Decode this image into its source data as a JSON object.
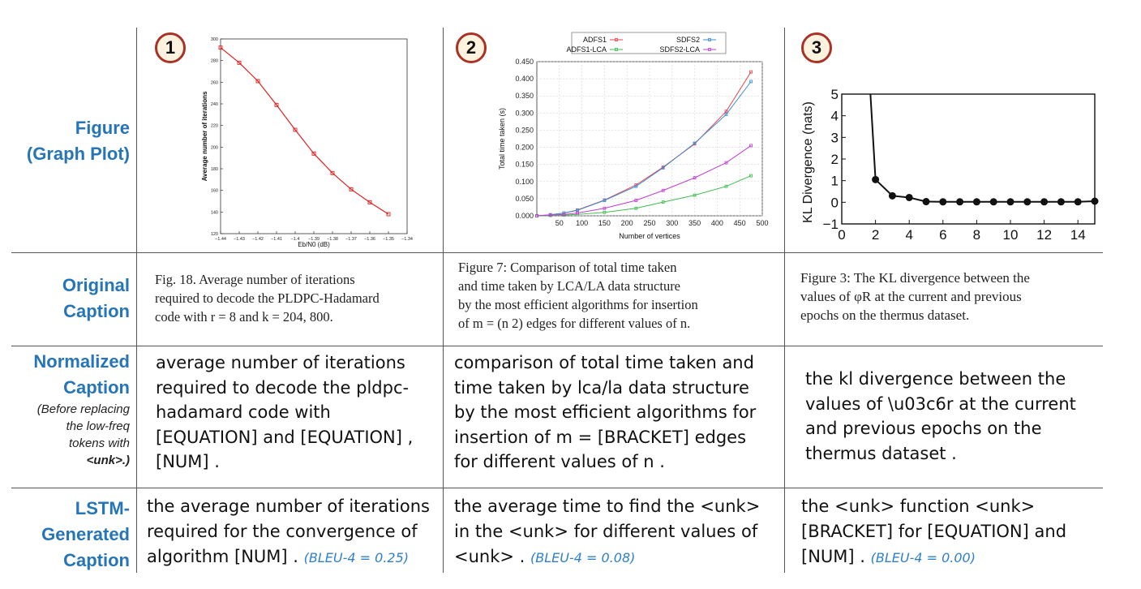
{
  "row_headers": {
    "figure": [
      "Figure",
      "(Graph Plot)"
    ],
    "original": [
      "Original",
      "Caption"
    ],
    "normalized": [
      "Normalized",
      "Caption"
    ],
    "normalized_note": [
      "(Before replacing",
      "the low-freq",
      "tokens with",
      "<unk>.)"
    ],
    "lstm": [
      "LSTM-",
      "Generated",
      "Caption"
    ]
  },
  "badges": [
    "1",
    "2",
    "3"
  ],
  "original_captions": [
    [
      "Fig. 18.  Average number of iterations",
      "required to decode the PLDPC-Hadamard",
      "code with r = 8 and k = 204, 800."
    ],
    [
      "Figure 7: Comparison of total time taken",
      "and time taken by LCA/LA data structure",
      "by the most efficient algorithms for insertion",
      "of m = (n 2) edges for different values of n."
    ],
    [
      "Figure 3:  The KL divergence between the",
      "values of φR at the current and previous",
      "epochs on the thermus dataset."
    ]
  ],
  "normalized_captions": [
    [
      "average number of iterations",
      "required to decode the pldpc-",
      "hadamard code with",
      "[EQUATION] and [EQUATION] ,",
      "[NUM] ."
    ],
    [
      "comparison of total time taken and",
      "time taken by lca/la data structure",
      "by the most efficient algorithms for",
      "insertion of m = [BRACKET] edges",
      "for different values of n ."
    ],
    [
      "the kl divergence between the",
      "values of \\u03c6r at the current",
      "and previous epochs on the",
      "thermus dataset ."
    ]
  ],
  "generated_captions": [
    {
      "lines": [
        "the average number of iterations",
        "required for the convergence of",
        "algorithm [NUM] ."
      ],
      "bleu": "(BLEU-4 = 0.25)"
    },
    {
      "lines": [
        "the average time to find the <unk>",
        "in the <unk> for different values of",
        "<unk> ."
      ],
      "bleu": "(BLEU-4 = 0.08)"
    },
    {
      "lines": [
        "the <unk> function <unk>",
        "[BRACKET] for [EQUATION] and",
        "[NUM] ."
      ],
      "bleu": "(BLEU-4 = 0.00)"
    }
  ],
  "chart_data": [
    {
      "type": "line",
      "xlabel": "Eb/N0 (dB)",
      "ylabel": "Average number of iterations",
      "x_ticks": [
        "-1.44",
        "-1.43",
        "-1.42",
        "-1.41",
        "-1.4",
        "-1.39",
        "-1.38",
        "-1.37",
        "-1.36",
        "-1.35",
        "-1.34"
      ],
      "y_ticks": [
        "120",
        "140",
        "160",
        "180",
        "200",
        "220",
        "240",
        "260",
        "280",
        "300"
      ],
      "xlim": [
        -1.44,
        -1.34
      ],
      "ylim": [
        120,
        300
      ],
      "x": [
        -1.44,
        -1.43,
        -1.42,
        -1.41,
        -1.4,
        -1.39,
        -1.38,
        -1.37,
        -1.36,
        -1.35
      ],
      "y": [
        292,
        278,
        261,
        239,
        216,
        194,
        176,
        161,
        149,
        138
      ],
      "color": "#e02020",
      "grid": false
    },
    {
      "type": "line",
      "xlabel": "Number of vertices",
      "ylabel": "Total time taken (s)",
      "x_ticks": [
        "50",
        "100",
        "150",
        "200",
        "250",
        "300",
        "350",
        "400",
        "450",
        "500"
      ],
      "y_ticks": [
        "0.000",
        "0.050",
        "0.100",
        "0.150",
        "0.200",
        "0.250",
        "0.300",
        "0.350",
        "0.400",
        "0.450"
      ],
      "xlim": [
        0,
        500
      ],
      "ylim": [
        0,
        0.45
      ],
      "legend_position": "top",
      "series": [
        {
          "name": "ADFS1",
          "color": "#e8434a",
          "x": [
            0,
            30,
            60,
            90,
            150,
            220,
            280,
            350,
            420,
            475
          ],
          "y": [
            0,
            0.003,
            0.008,
            0.017,
            0.046,
            0.09,
            0.142,
            0.21,
            0.305,
            0.42
          ]
        },
        {
          "name": "SDFS2",
          "color": "#3a8fd8",
          "x": [
            0,
            30,
            60,
            90,
            150,
            220,
            280,
            350,
            420,
            475
          ],
          "y": [
            0,
            0.003,
            0.008,
            0.016,
            0.045,
            0.086,
            0.14,
            0.212,
            0.296,
            0.392
          ]
        },
        {
          "name": "ADFS1-LCA",
          "color": "#3fbf4f",
          "x": [
            0,
            30,
            60,
            90,
            150,
            220,
            280,
            350,
            420,
            475
          ],
          "y": [
            0,
            0.001,
            0.002,
            0.004,
            0.01,
            0.022,
            0.04,
            0.06,
            0.086,
            0.117
          ]
        },
        {
          "name": "SDFS2-LCA",
          "color": "#c23fd0",
          "x": [
            0,
            30,
            60,
            90,
            150,
            220,
            280,
            350,
            420,
            475
          ],
          "y": [
            0,
            0.002,
            0.004,
            0.008,
            0.022,
            0.045,
            0.074,
            0.111,
            0.155,
            0.205
          ]
        }
      ],
      "grid": true
    },
    {
      "type": "line",
      "xlabel": "",
      "ylabel": "KL Divergence (nats)",
      "x_ticks": [
        "0",
        "2",
        "4",
        "6",
        "8",
        "10",
        "12",
        "14"
      ],
      "y_ticks": [
        "−1",
        "0",
        "1",
        "2",
        "3",
        "4",
        "5"
      ],
      "xlim": [
        0,
        15
      ],
      "ylim": [
        -1,
        5
      ],
      "x": [
        1.7,
        2,
        3,
        4,
        5,
        6,
        7,
        8,
        9,
        10,
        11,
        12,
        13,
        14,
        15
      ],
      "y": [
        5,
        1.05,
        0.3,
        0.22,
        0.03,
        0.02,
        0.02,
        0.02,
        0.02,
        0.02,
        0.02,
        0.02,
        0.02,
        0.02,
        0.05
      ],
      "markers_from_index": 1,
      "color": "#111111",
      "grid": false
    }
  ]
}
